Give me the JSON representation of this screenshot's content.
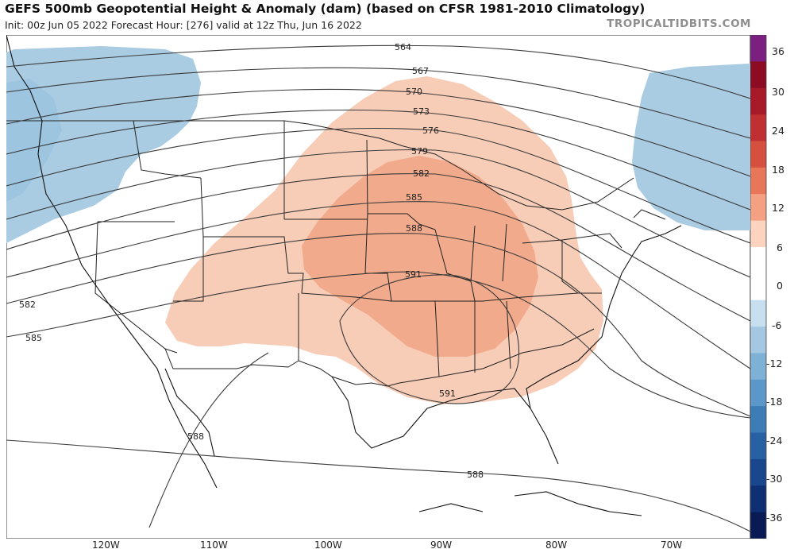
{
  "header": {
    "title": "GEFS 500mb Geopotential Height & Anomaly (dam) (based on CFSR 1981-2010 Climatology)",
    "subtitle": "Init: 00z Jun 05 2022   Forecast Hour: [276]   valid at 12z Thu, Jun 16 2022",
    "brand": "TROPICALTIDBITS.COM"
  },
  "map": {
    "longitude_labels": [
      "120W",
      "110W",
      "100W",
      "90W",
      "80W",
      "70W"
    ],
    "contour_labels": [
      "564",
      "567",
      "570",
      "573",
      "576",
      "579",
      "582",
      "585",
      "588",
      "591",
      "582",
      "585",
      "588",
      "591",
      "588"
    ],
    "anomaly_colors": {
      "positive_light": "#f8cdb8",
      "positive_mid": "#f1ab8c",
      "negative_light": "#a9cce3",
      "negative_mid": "#8ebcd9"
    }
  },
  "colorbar": {
    "labels": [
      "36",
      "30",
      "24",
      "18",
      "12",
      "6",
      "0",
      "-6",
      "-12",
      "-18",
      "-24",
      "-30",
      "-36"
    ],
    "colors": [
      "#7b1f80",
      "#8b0c23",
      "#a61a2a",
      "#c02f31",
      "#d5503f",
      "#e87658",
      "#f4a082",
      "#fbd3bf",
      "#ffffff",
      "#ffffff",
      "#c8dff0",
      "#a4c8e2",
      "#7fb0d6",
      "#5b97c8",
      "#3e7cb8",
      "#2860a4",
      "#1a468e",
      "#0f2f75",
      "#081b55"
    ]
  }
}
